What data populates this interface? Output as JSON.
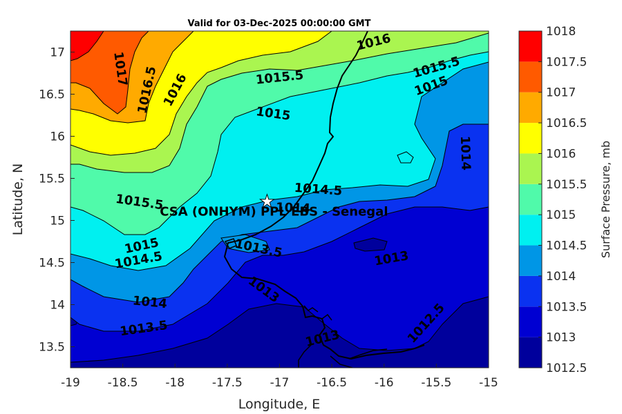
{
  "title": "Valid for 03-Dec-2025 00:00:00 GMT",
  "xlabel": "Longitude, E",
  "ylabel": "Latitude, N",
  "colorbar_label": "Surface Pressure, mb",
  "site_label": "CSA (ONHYM) PPL EBS - Senegal",
  "site": {
    "lon": -17.12,
    "lat": 15.23
  },
  "chart_data": {
    "type": "contour",
    "variable": "Surface Pressure",
    "unit": "mb",
    "xlim": [
      -19,
      -15
    ],
    "ylim": [
      13.25,
      17.25
    ],
    "x_ticks": [
      -19,
      -18.5,
      -18,
      -17.5,
      -17,
      -16.5,
      -16,
      -15.5,
      -15
    ],
    "y_ticks": [
      13.5,
      14,
      14.5,
      15,
      15.5,
      16,
      16.5,
      17
    ],
    "levels": [
      1012.5,
      1013,
      1013.5,
      1014,
      1014.5,
      1015,
      1015.5,
      1016,
      1016.5,
      1017,
      1017.5,
      1018
    ],
    "colorbar_tick_labels": [
      "1012.5",
      "1013",
      "1013.5",
      "1014",
      "1014.5",
      "1015",
      "1015.5",
      "1016",
      "1016.5",
      "1017",
      "1017.5",
      "1018"
    ],
    "level_colors": [
      "#00009c",
      "#0000d2",
      "#0a32f0",
      "#0096e6",
      "#00f0f0",
      "#50faaa",
      "#aaf550",
      "#ffff00",
      "#ffaa00",
      "#ff5a00",
      "#ff0000",
      "#a00000"
    ],
    "contour_labels": [
      {
        "text": "1017",
        "lon": -18.52,
        "lat": 16.8,
        "rot": 82
      },
      {
        "text": "1016.5",
        "lon": -18.27,
        "lat": 16.55,
        "rot": -78
      },
      {
        "text": "1016",
        "lon": -18.0,
        "lat": 16.55,
        "rot": -62
      },
      {
        "text": "1016",
        "lon": -16.1,
        "lat": 17.12,
        "rot": -14
      },
      {
        "text": "1015.5",
        "lon": -17.0,
        "lat": 16.7,
        "rot": -6
      },
      {
        "text": "1015.5",
        "lon": -15.5,
        "lat": 16.82,
        "rot": -16
      },
      {
        "text": "1015",
        "lon": -15.55,
        "lat": 16.6,
        "rot": -20
      },
      {
        "text": "1015",
        "lon": -17.06,
        "lat": 16.27,
        "rot": 8
      },
      {
        "text": "1014",
        "lon": -15.22,
        "lat": 15.8,
        "rot": 88
      },
      {
        "text": "1014.5",
        "lon": -16.63,
        "lat": 15.37,
        "rot": 4
      },
      {
        "text": "1015.5",
        "lon": -18.34,
        "lat": 15.22,
        "rot": 8
      },
      {
        "text": "1014",
        "lon": -16.87,
        "lat": 15.15,
        "rot": 2
      },
      {
        "text": "1015",
        "lon": -18.32,
        "lat": 14.7,
        "rot": -12
      },
      {
        "text": "1014.5",
        "lon": -18.35,
        "lat": 14.53,
        "rot": -10
      },
      {
        "text": "1013.5",
        "lon": -17.2,
        "lat": 14.67,
        "rot": 12
      },
      {
        "text": "1013",
        "lon": -15.93,
        "lat": 14.55,
        "rot": -10
      },
      {
        "text": "1013",
        "lon": -17.15,
        "lat": 14.18,
        "rot": 36
      },
      {
        "text": "1014",
        "lon": -18.24,
        "lat": 14.03,
        "rot": 6
      },
      {
        "text": "1013.5",
        "lon": -18.3,
        "lat": 13.72,
        "rot": -8
      },
      {
        "text": "1012.5",
        "lon": -15.6,
        "lat": 13.78,
        "rot": -48
      },
      {
        "text": "1013",
        "lon": -16.59,
        "lat": 13.6,
        "rot": -14
      }
    ]
  }
}
